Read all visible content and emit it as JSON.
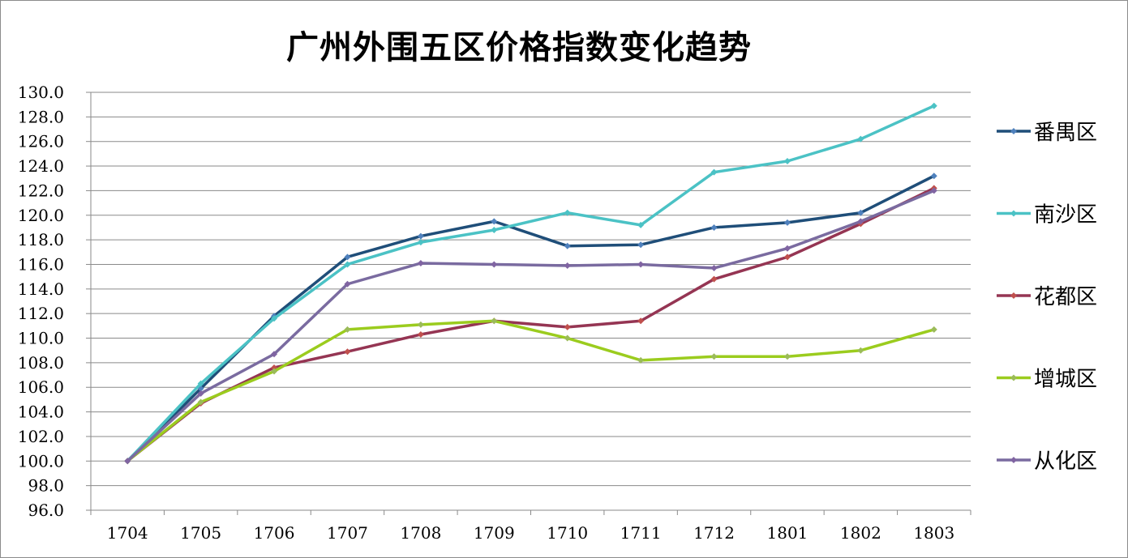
{
  "chart_data": {
    "type": "line",
    "title": "广州外围五区价格指数变化趋势",
    "xlabel": "",
    "ylabel": "",
    "categories": [
      "1704",
      "1705",
      "1706",
      "1707",
      "1708",
      "1709",
      "1710",
      "1711",
      "1712",
      "1801",
      "1802",
      "1803"
    ],
    "ylim": [
      96,
      130
    ],
    "ytick_step": 2,
    "yticks": [
      "96.0",
      "98.0",
      "100.0",
      "102.0",
      "104.0",
      "106.0",
      "108.0",
      "110.0",
      "112.0",
      "114.0",
      "116.0",
      "118.0",
      "120.0",
      "122.0",
      "124.0",
      "126.0",
      "128.0",
      "130.0"
    ],
    "grid": true,
    "legend_position": "right",
    "series": [
      {
        "name": "番禺区",
        "color": "#1f4e79",
        "marker": "#4f81bd",
        "values": [
          100.0,
          105.9,
          111.8,
          116.6,
          118.3,
          119.5,
          117.5,
          117.6,
          119.0,
          119.4,
          120.2,
          123.2
        ]
      },
      {
        "name": "南沙区",
        "color": "#4bc2c5",
        "marker": "#4bc2c5",
        "values": [
          100.0,
          106.3,
          111.6,
          116.0,
          117.8,
          118.8,
          120.2,
          119.2,
          123.5,
          124.4,
          126.2,
          128.9
        ]
      },
      {
        "name": "花都区",
        "color": "#953553",
        "marker": "#c0504d",
        "values": [
          100.0,
          104.7,
          107.6,
          108.9,
          110.3,
          111.4,
          110.9,
          111.4,
          114.8,
          116.6,
          119.3,
          122.2
        ]
      },
      {
        "name": "增城区",
        "color": "#9bcc1e",
        "marker": "#9bbb59",
        "values": [
          100.0,
          104.8,
          107.3,
          110.7,
          111.1,
          111.4,
          110.0,
          108.2,
          108.5,
          108.5,
          109.0,
          110.7
        ]
      },
      {
        "name": "从化区",
        "color": "#7a6ba0",
        "marker": "#8064a2",
        "values": [
          100.0,
          105.5,
          108.7,
          114.4,
          116.1,
          116.0,
          115.9,
          116.0,
          115.7,
          117.3,
          119.5,
          122.0
        ]
      }
    ]
  }
}
